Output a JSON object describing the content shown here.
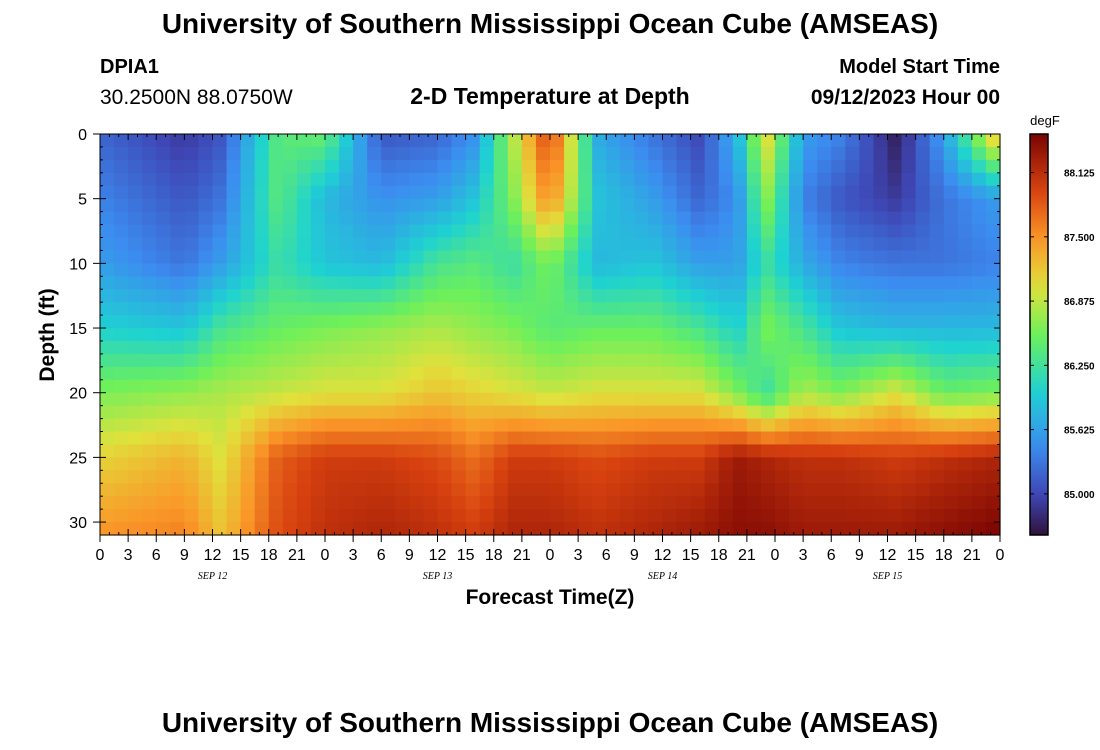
{
  "header": {
    "title": "University of Southern Mississippi Ocean Cube (AMSEAS)",
    "station": "DPIA1",
    "coords": "30.2500N  88.0750W",
    "subtitle": "2-D Temperature at Depth",
    "model_start_label": "Model Start Time",
    "model_start_value": "09/12/2023 Hour 00"
  },
  "footer": {
    "title": "University of Southern Mississippi Ocean Cube (AMSEAS)"
  },
  "chart_data": {
    "type": "heatmap",
    "title": "2-D Temperature at Depth",
    "xlabel": "Forecast Time(Z)",
    "ylabel": "Depth (ft)",
    "x_range_hours": [
      0,
      96
    ],
    "x_step_hours": 1.5,
    "xticks_hours": [
      0,
      3,
      6,
      9,
      12,
      15,
      18,
      21,
      24,
      27,
      30,
      33,
      36,
      39,
      42,
      45,
      48,
      51,
      54,
      57,
      60,
      63,
      66,
      69,
      72,
      75,
      78,
      81,
      84,
      87,
      90,
      93,
      96
    ],
    "xtick_labels": [
      "0",
      "3",
      "6",
      "9",
      "12",
      "15",
      "18",
      "21",
      "0",
      "3",
      "6",
      "9",
      "12",
      "15",
      "18",
      "21",
      "0",
      "3",
      "6",
      "9",
      "12",
      "15",
      "18",
      "21",
      "0",
      "3",
      "6",
      "9",
      "12",
      "15",
      "18",
      "21",
      "0"
    ],
    "date_labels": [
      {
        "label": "SEP 12",
        "hour": 12
      },
      {
        "label": "SEP 13",
        "hour": 36
      },
      {
        "label": "SEP 14",
        "hour": 60
      },
      {
        "label": "SEP 15",
        "hour": 84
      }
    ],
    "y_range_ft": [
      0,
      31
    ],
    "yticks": [
      0,
      5,
      10,
      15,
      20,
      25,
      30
    ],
    "ytick_labels": [
      "0",
      "5",
      "10",
      "15",
      "20",
      "25",
      "30"
    ],
    "depth_levels_ft": [
      0,
      1,
      2,
      3,
      4,
      5,
      6,
      7,
      8,
      9,
      10,
      11,
      12,
      13,
      14,
      15,
      16,
      17,
      18,
      19,
      20,
      21,
      22,
      23,
      24,
      25,
      26,
      27,
      28,
      29,
      30
    ],
    "colorbar": {
      "units": "degF",
      "min": 84.6,
      "max": 88.5,
      "ticks": [
        85.0,
        85.625,
        86.25,
        86.875,
        87.5,
        88.125
      ],
      "tick_labels": [
        "85.000",
        "85.625",
        "86.250",
        "86.875",
        "87.500",
        "88.125"
      ]
    },
    "profile_keyframes": [
      {
        "hour": 0,
        "temps_by_depth": [
          85.2,
          85.4,
          85.6,
          86.0,
          86.6,
          87.1,
          87.5
        ]
      },
      {
        "hour": 9,
        "temps_by_depth": [
          84.9,
          85.1,
          85.3,
          85.9,
          86.7,
          87.3,
          87.6
        ]
      },
      {
        "hour": 13,
        "temps_by_depth": [
          85.1,
          85.3,
          85.6,
          86.3,
          86.8,
          87.0,
          87.2
        ]
      },
      {
        "hour": 19,
        "temps_by_depth": [
          86.4,
          86.4,
          86.2,
          86.5,
          86.9,
          87.8,
          87.9
        ]
      },
      {
        "hour": 24,
        "temps_by_depth": [
          86.5,
          85.8,
          85.9,
          86.6,
          87.0,
          88.0,
          88.1
        ]
      },
      {
        "hour": 30,
        "temps_by_depth": [
          85.1,
          85.5,
          85.8,
          86.7,
          87.0,
          88.0,
          88.2
        ]
      },
      {
        "hour": 36,
        "temps_by_depth": [
          85.2,
          85.6,
          86.3,
          86.8,
          87.2,
          87.9,
          88.1
        ]
      },
      {
        "hour": 40,
        "temps_by_depth": [
          85.5,
          85.9,
          86.4,
          86.7,
          87.1,
          87.7,
          88.0
        ]
      },
      {
        "hour": 44,
        "temps_by_depth": [
          86.8,
          86.6,
          86.2,
          86.6,
          87.0,
          88.0,
          88.2
        ]
      },
      {
        "hour": 48,
        "temps_by_depth": [
          88.0,
          87.6,
          86.6,
          86.4,
          86.9,
          88.0,
          88.2
        ]
      },
      {
        "hour": 53,
        "temps_by_depth": [
          85.7,
          85.9,
          85.8,
          86.5,
          87.0,
          87.9,
          88.1
        ]
      },
      {
        "hour": 59,
        "temps_by_depth": [
          85.3,
          85.6,
          85.9,
          86.5,
          87.0,
          88.0,
          88.2
        ]
      },
      {
        "hour": 64,
        "temps_by_depth": [
          85.0,
          85.2,
          85.6,
          86.3,
          87.0,
          88.0,
          88.3
        ]
      },
      {
        "hour": 68,
        "temps_by_depth": [
          85.8,
          85.5,
          85.6,
          86.0,
          86.6,
          88.3,
          88.4
        ]
      },
      {
        "hour": 71,
        "temps_by_depth": [
          87.1,
          86.7,
          86.2,
          86.6,
          86.2,
          88.2,
          88.4
        ]
      },
      {
        "hour": 75,
        "temps_by_depth": [
          85.6,
          85.4,
          85.7,
          86.3,
          86.8,
          88.1,
          88.3
        ]
      },
      {
        "hour": 79,
        "temps_by_depth": [
          85.4,
          85.1,
          85.4,
          85.9,
          86.6,
          88.1,
          88.3
        ]
      },
      {
        "hour": 85,
        "temps_by_depth": [
          84.7,
          84.9,
          85.3,
          85.8,
          87.0,
          88.0,
          88.3
        ]
      },
      {
        "hour": 90,
        "temps_by_depth": [
          85.6,
          85.3,
          85.3,
          85.8,
          86.5,
          88.1,
          88.4
        ]
      },
      {
        "hour": 96,
        "temps_by_depth": [
          87.4,
          85.6,
          85.4,
          85.8,
          86.6,
          88.2,
          88.5
        ]
      }
    ],
    "profile_depths_ft": [
      0,
      5,
      10,
      15,
      20,
      25,
      31
    ]
  }
}
